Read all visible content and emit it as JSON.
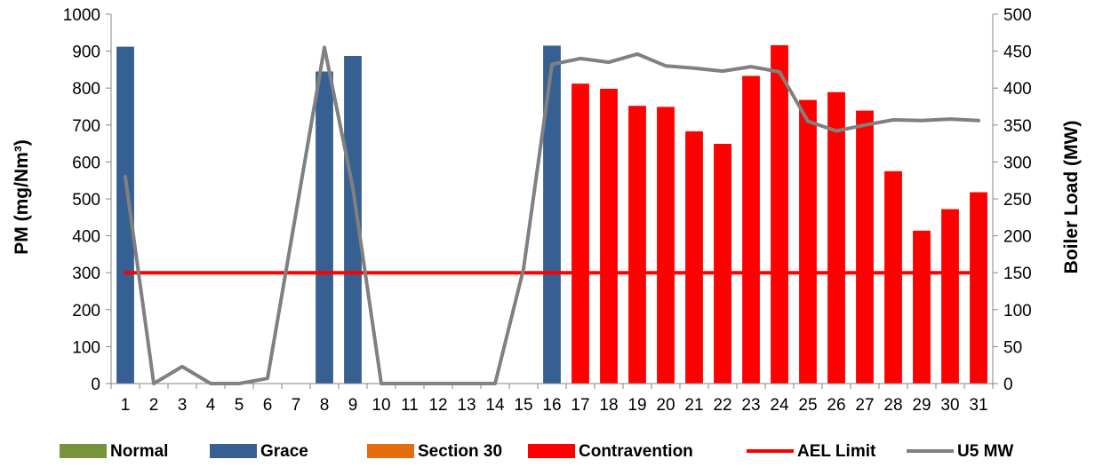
{
  "chart_data": {
    "type": "bar",
    "title": "",
    "x": [
      "1",
      "2",
      "3",
      "4",
      "5",
      "6",
      "7",
      "8",
      "9",
      "10",
      "11",
      "12",
      "13",
      "14",
      "15",
      "16",
      "17",
      "18",
      "19",
      "20",
      "21",
      "22",
      "23",
      "24",
      "25",
      "26",
      "27",
      "28",
      "29",
      "30",
      "31"
    ],
    "ylabel": "PM (mg/Nm³)",
    "y2label": "Boiler Load (MW)",
    "ylim": [
      0,
      1000
    ],
    "y2lim": [
      0,
      500
    ],
    "yticks": [
      "0",
      "100",
      "200",
      "300",
      "400",
      "500",
      "600",
      "700",
      "800",
      "900",
      "1000"
    ],
    "y2ticks": [
      "0",
      "50",
      "100",
      "150",
      "200",
      "250",
      "300",
      "350",
      "400",
      "450",
      "500"
    ],
    "grid": false,
    "legend_position": "bottom",
    "series": [
      {
        "name": "Normal",
        "type": "bar",
        "axis": "left",
        "color": "#77933c",
        "values": [
          null,
          null,
          null,
          null,
          null,
          null,
          null,
          null,
          null,
          null,
          null,
          null,
          null,
          null,
          null,
          null,
          null,
          null,
          null,
          null,
          null,
          null,
          null,
          null,
          null,
          null,
          null,
          null,
          null,
          null,
          null
        ]
      },
      {
        "name": "Grace",
        "type": "bar",
        "axis": "left",
        "color": "#376092",
        "values": [
          912,
          null,
          null,
          null,
          null,
          null,
          null,
          845,
          887,
          null,
          null,
          null,
          null,
          null,
          null,
          915,
          null,
          null,
          null,
          null,
          null,
          null,
          null,
          null,
          null,
          null,
          null,
          null,
          null,
          null,
          null
        ]
      },
      {
        "name": "Section 30",
        "type": "bar",
        "axis": "left",
        "color": "#e46c0a",
        "values": [
          null,
          null,
          null,
          null,
          null,
          null,
          null,
          null,
          null,
          null,
          null,
          null,
          null,
          null,
          null,
          null,
          null,
          null,
          null,
          null,
          null,
          null,
          null,
          null,
          null,
          null,
          null,
          null,
          null,
          null,
          null
        ]
      },
      {
        "name": "Contravention",
        "type": "bar",
        "axis": "left",
        "color": "#ff0000",
        "values": [
          null,
          null,
          null,
          null,
          null,
          null,
          null,
          null,
          null,
          null,
          null,
          null,
          null,
          null,
          null,
          null,
          812,
          798,
          752,
          749,
          683,
          649,
          833,
          916,
          768,
          789,
          739,
          575,
          414,
          472,
          518
        ]
      },
      {
        "name": "AEL Limit",
        "type": "line",
        "axis": "left",
        "color": "#ff0000",
        "values": [
          300,
          300,
          300,
          300,
          300,
          300,
          300,
          300,
          300,
          300,
          300,
          300,
          300,
          300,
          300,
          300,
          300,
          300,
          300,
          300,
          300,
          300,
          300,
          300,
          300,
          300,
          300,
          300,
          300,
          300,
          300
        ]
      },
      {
        "name": "U5 MW",
        "type": "line",
        "axis": "right",
        "color": "#808080",
        "values": [
          280,
          0,
          23,
          0,
          0,
          7,
          null,
          455,
          265,
          0,
          0,
          0,
          0,
          0,
          155,
          432,
          440,
          435,
          446,
          430,
          427,
          423,
          429,
          422,
          355,
          342,
          350,
          357,
          356,
          358,
          356
        ]
      }
    ]
  }
}
